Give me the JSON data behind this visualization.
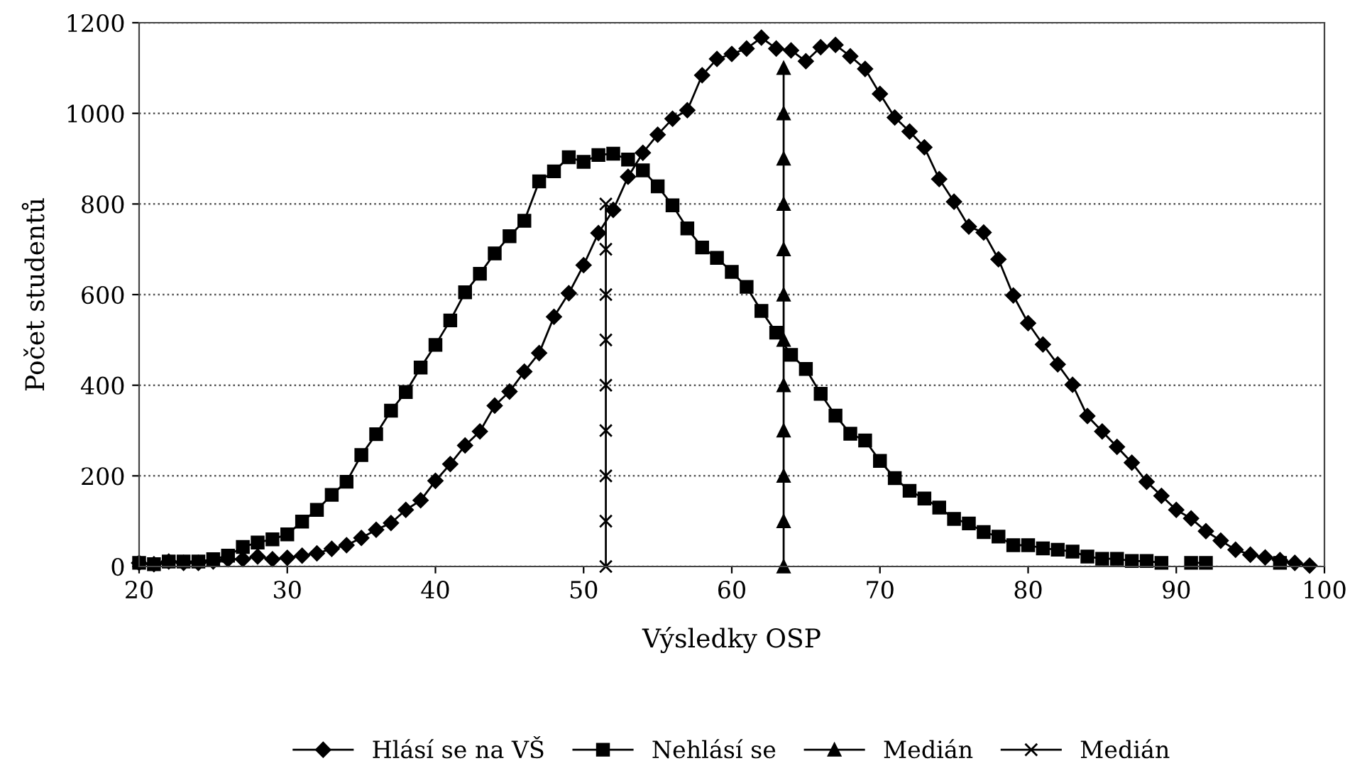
{
  "chart_data": {
    "type": "line",
    "xlabel": "Výsledky OSP",
    "ylabel": "Počet studentů",
    "xlim": [
      20,
      100
    ],
    "xticks": [
      20,
      30,
      40,
      50,
      60,
      70,
      80,
      90,
      100
    ],
    "ylim": [
      0,
      1200
    ],
    "yticks": [
      0,
      200,
      400,
      600,
      800,
      1000,
      1200
    ],
    "grid": "y",
    "legend": "bottom",
    "series": [
      {
        "name": "Hlásí se na VŠ",
        "color": "#000000",
        "marker": "diamond",
        "x": [
          20,
          21,
          22,
          23,
          24,
          25,
          26,
          27,
          28,
          29,
          30,
          31,
          32,
          33,
          34,
          35,
          36,
          37,
          38,
          39,
          40,
          41,
          42,
          43,
          44,
          45,
          46,
          47,
          48,
          49,
          50,
          51,
          52,
          53,
          54,
          55,
          56,
          57,
          58,
          59,
          60,
          61,
          62,
          63,
          64,
          65,
          66,
          67,
          68,
          69,
          70,
          71,
          72,
          73,
          74,
          75,
          76,
          77,
          78,
          79,
          80,
          81,
          82,
          83,
          84,
          85,
          86,
          87,
          88,
          89,
          90,
          91,
          92,
          93,
          94,
          95,
          96,
          97,
          98,
          99
        ],
        "values": [
          8,
          5,
          11,
          8,
          8,
          11,
          16,
          16,
          22,
          16,
          19,
          24,
          29,
          39,
          47,
          63,
          81,
          96,
          125,
          146,
          189,
          226,
          267,
          298,
          355,
          386,
          430,
          471,
          551,
          603,
          665,
          736,
          787,
          860,
          913,
          953,
          988,
          1007,
          1084,
          1120,
          1131,
          1143,
          1167,
          1143,
          1139,
          1115,
          1146,
          1151,
          1126,
          1098,
          1043,
          991,
          960,
          925,
          855,
          805,
          750,
          737,
          678,
          598,
          537,
          490,
          446,
          401,
          332,
          298,
          264,
          229,
          187,
          156,
          125,
          106,
          78,
          57,
          37,
          26,
          20,
          14,
          8,
          2
        ]
      },
      {
        "name": "Nehlásí se",
        "color": "#000000",
        "marker": "square",
        "x": [
          20,
          21,
          22,
          23,
          24,
          25,
          26,
          27,
          28,
          29,
          30,
          31,
          32,
          33,
          34,
          35,
          36,
          37,
          38,
          39,
          40,
          41,
          42,
          43,
          44,
          45,
          46,
          47,
          48,
          49,
          50,
          51,
          52,
          53,
          54,
          55,
          56,
          57,
          58,
          59,
          60,
          61,
          62,
          63,
          64,
          65,
          66,
          67,
          68,
          69,
          70,
          71,
          72,
          73,
          74,
          75,
          76,
          77,
          78,
          79,
          80,
          81,
          82,
          83,
          84,
          85,
          86,
          87,
          88,
          89,
          90,
          91,
          92,
          93,
          94,
          95,
          96,
          97
        ],
        "values": [
          8,
          5,
          11,
          11,
          11,
          16,
          24,
          43,
          53,
          60,
          71,
          99,
          125,
          158,
          187,
          246,
          292,
          344,
          385,
          439,
          489,
          543,
          605,
          646,
          691,
          729,
          763,
          850,
          872,
          903,
          893,
          908,
          911,
          898,
          874,
          839,
          797,
          746,
          704,
          681,
          650,
          617,
          564,
          516,
          467,
          436,
          381,
          333,
          293,
          278,
          233,
          195,
          167,
          150,
          130,
          105,
          95,
          76,
          66,
          47,
          47,
          40,
          37,
          33,
          22,
          17,
          17,
          12,
          12,
          8,
          null,
          8,
          8,
          null,
          null,
          null,
          null,
          8
        ]
      },
      {
        "name": "Medián",
        "color": "#000000",
        "marker": "triangle",
        "x": [
          63.5,
          63.5,
          63.5,
          63.5,
          63.5,
          63.5,
          63.5,
          63.5,
          63.5,
          63.5,
          63.5,
          63.5
        ],
        "values": [
          0,
          100,
          200,
          300,
          400,
          500,
          600,
          700,
          800,
          900,
          1000,
          1100
        ]
      },
      {
        "name": "Medián",
        "color": "#000000",
        "marker": "cross",
        "x": [
          51.5,
          51.5,
          51.5,
          51.5,
          51.5,
          51.5,
          51.5,
          51.5,
          51.5
        ],
        "values": [
          0,
          100,
          200,
          300,
          400,
          500,
          600,
          700,
          800
        ]
      }
    ]
  }
}
